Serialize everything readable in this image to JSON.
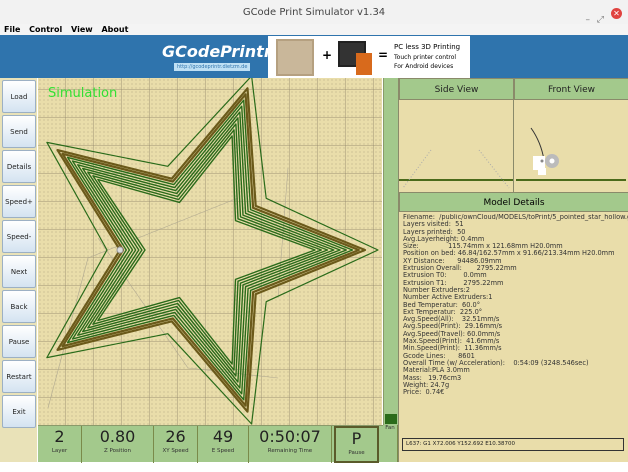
{
  "window": {
    "title": "GCode Print Simulator v1.34",
    "min": "–",
    "max": "⤢",
    "close": "✕"
  },
  "menu": [
    "File",
    "Control",
    "View",
    "About"
  ],
  "banner": {
    "logo": "GCodePrintr",
    "url": "http://gcodeprintr.dietzm.de",
    "line1": "PC less 3D Printing",
    "line2": "Touch printer control",
    "line3": "For Android devices",
    "plus": "+",
    "equals": "="
  },
  "buttons": [
    "Load",
    "Send",
    "Details",
    "Speed+",
    "Speed-",
    "Next",
    "Back",
    "Pause",
    "Restart",
    "Exit"
  ],
  "canvas": {
    "label": "Simulation"
  },
  "views": {
    "side": "Side View",
    "front": "Front View"
  },
  "model_details": {
    "title": "Model Details",
    "lines": [
      "Filename:  /public/ownCloud/MODELS/toPrint/5_pointed_star_hollow.g",
      "Layers visited:  51",
      "Layers printed:  50",
      "Avg.Layerheight: 0.4mm",
      "Size:              115.74mm x 121.68mm H20.0mm",
      "Position on bed: 46.84/162.57mm x 91.66/213.34mm H20.0mm",
      "XY Distance:      94486.09mm",
      "Extrusion Overall:       2795.22mm",
      "Extrusion T0:        0.0mm",
      "Extrusion T1:        2795.22mm",
      "Number Extruders:2",
      "Number Active Extruders:1",
      "Bed Temperatur:  60.0°",
      "Ext Temperatur:  225.0°",
      "Avg.Speed(All):    32.51mm/s",
      "Avg.Speed(Print):  29.16mm/s",
      "Avg.Speed(Travel): 60.0mm/s",
      "Max.Speed(Print):  41.6mm/s",
      "Min.Speed(Print):  11.36mm/s",
      "Gcode Lines:      8601",
      "Overall Time (w/ Acceleration):    0:54:09 (3248.546sec)",
      "Material:PLA 3.0mm",
      "Mass:   19.76cm3",
      "Weight: 24.7g",
      "Price:  0.74€"
    ]
  },
  "status": [
    {
      "value": "2",
      "label": "Layer"
    },
    {
      "value": "0.80",
      "label": "Z Position"
    },
    {
      "value": "26",
      "label": "XY Speed"
    },
    {
      "value": "49",
      "label": "E Speed"
    },
    {
      "value": "0:50:07",
      "label": "Remaining Time"
    },
    {
      "value": "P",
      "label": "Pause"
    },
    {
      "value": "",
      "label": "Fan"
    }
  ],
  "gcode_line": "L637: G1 X72.006 Y152.692 E10.38700",
  "colors": {
    "path": "#2a6b1a",
    "band": "#4d8a2a",
    "canvas": "#e9ddaa",
    "panel": "#a3c98c",
    "banner": "#2f74ad"
  }
}
